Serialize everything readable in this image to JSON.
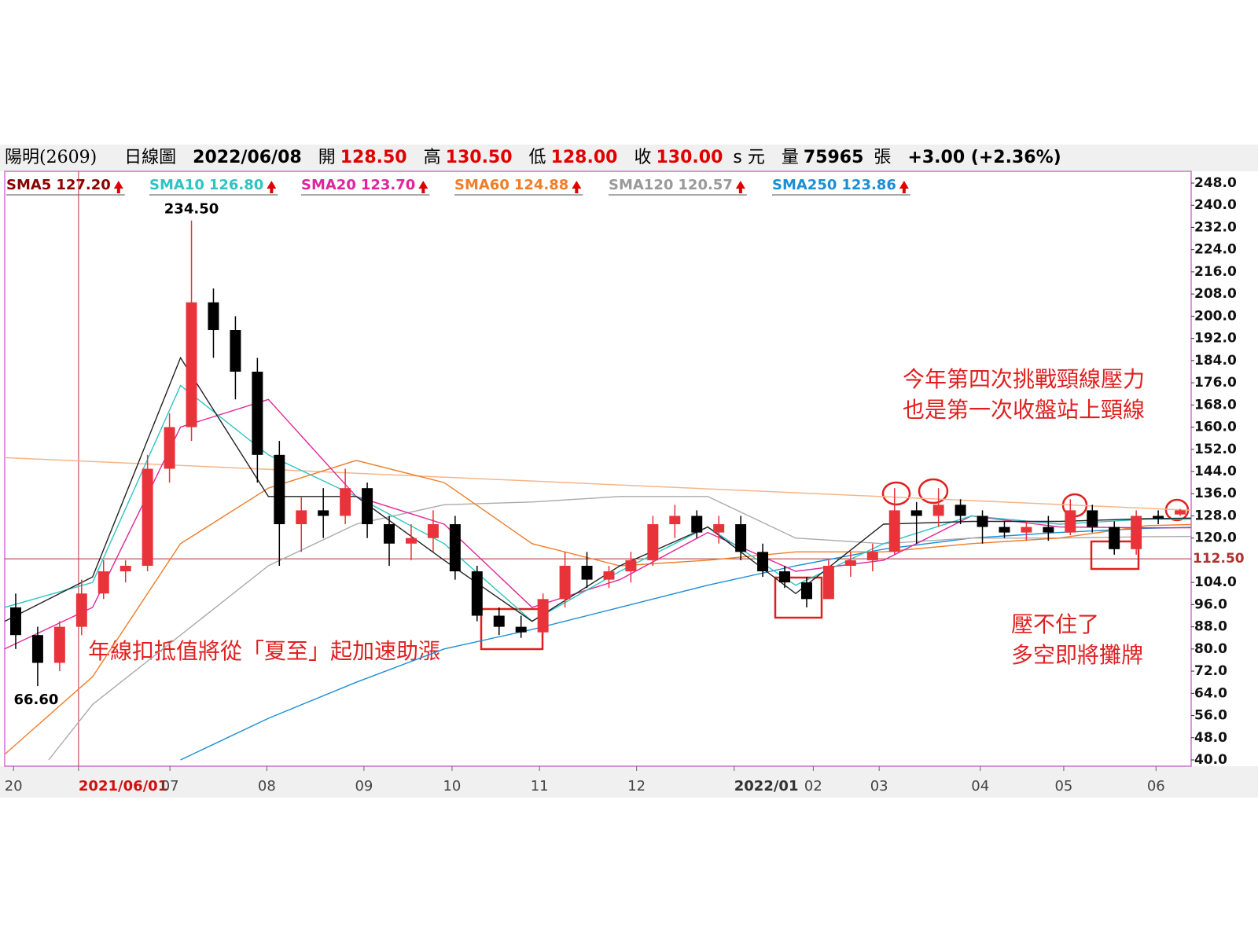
{
  "header": {
    "stock": "陽明(2609)",
    "chart_kind": "日線圖",
    "date": "2022/06/08",
    "open_label": "開",
    "open": "128.50",
    "high_label": "高",
    "high": "130.50",
    "low_label": "低",
    "low": "128.00",
    "close_label": "收",
    "close": "130.00",
    "close_unit": "s 元",
    "volume_label": "量",
    "volume": "75965",
    "volume_unit": "張",
    "change": "+3.00 (+2.36%)"
  },
  "chart_data": {
    "type": "candlestick",
    "up_color": "#e8333a",
    "down_color": "#000000",
    "candles": {
      "open": [
        95,
        85,
        75,
        88,
        100,
        108,
        110,
        145,
        160,
        205,
        195,
        180,
        150,
        125,
        130,
        128,
        138,
        125,
        118,
        120,
        125,
        108,
        92,
        88,
        86,
        98,
        110,
        105,
        108,
        112,
        125,
        128,
        122,
        125,
        115,
        108,
        104,
        98,
        110,
        112,
        115,
        130,
        128,
        132,
        128,
        124,
        122,
        124,
        122,
        130,
        124,
        116,
        128,
        128.5
      ],
      "high": [
        100,
        88,
        90,
        105,
        112,
        112,
        150,
        165,
        234.5,
        210,
        200,
        185,
        155,
        135,
        138,
        145,
        140,
        128,
        125,
        130,
        128,
        110,
        95,
        92,
        100,
        115,
        115,
        110,
        115,
        128,
        132,
        130,
        128,
        128,
        118,
        110,
        106,
        112,
        115,
        118,
        138,
        133,
        138,
        134,
        130,
        126,
        126,
        128,
        134,
        132,
        126,
        130,
        130,
        130.5
      ],
      "low": [
        80,
        66.6,
        72,
        85,
        98,
        104,
        108,
        140,
        155,
        185,
        170,
        140,
        110,
        115,
        120,
        125,
        120,
        110,
        112,
        115,
        105,
        90,
        85,
        84,
        85,
        95,
        102,
        102,
        104,
        110,
        120,
        120,
        118,
        112,
        106,
        102,
        95,
        98,
        106,
        108,
        114,
        118,
        124,
        125,
        118,
        120,
        119,
        119,
        121,
        122,
        114,
        114,
        125,
        128
      ],
      "close": [
        85,
        75,
        88,
        100,
        108,
        110,
        145,
        160,
        205,
        195,
        180,
        150,
        125,
        130,
        128,
        138,
        125,
        118,
        120,
        125,
        108,
        92,
        88,
        86,
        98,
        110,
        105,
        108,
        112,
        125,
        128,
        122,
        125,
        115,
        108,
        104,
        98,
        110,
        112,
        115,
        130,
        128,
        132,
        128,
        124,
        122,
        124,
        122,
        130,
        124,
        116,
        128,
        127,
        130
      ]
    },
    "peak_label": "234.50",
    "trough_label": "66.60",
    "series": [
      {
        "name": "SMA5",
        "current": {
          "value": 127.2,
          "label": "127.20"
        },
        "color": "#8b0000",
        "line_color": "#222222",
        "x": [
          0,
          4,
          8,
          12,
          16,
          20,
          24,
          28,
          32,
          36,
          40,
          44,
          48,
          52,
          54
        ],
        "values": [
          90,
          106,
          185,
          135,
          135,
          112,
          90,
          110,
          124,
          100,
          125,
          126,
          126,
          127,
          127.2
        ]
      },
      {
        "name": "SMA10",
        "current": {
          "value": 126.8,
          "label": "126.80"
        },
        "color": "#2ec4c4",
        "line_color": "#2ec4c4",
        "x": [
          0,
          4,
          8,
          12,
          16,
          20,
          24,
          28,
          32,
          36,
          40,
          44,
          48,
          52,
          54
        ],
        "values": [
          95,
          104,
          175,
          150,
          135,
          118,
          90,
          108,
          124,
          103,
          118,
          128,
          125,
          126.8,
          126.8
        ]
      },
      {
        "name": "SMA20",
        "current": {
          "value": 123.7,
          "label": "123.70"
        },
        "color": "#e0259c",
        "line_color": "#e0259c",
        "x": [
          0,
          4,
          8,
          12,
          16,
          20,
          24,
          28,
          32,
          36,
          40,
          44,
          48,
          52,
          54
        ],
        "values": [
          80,
          95,
          160,
          170,
          135,
          125,
          95,
          105,
          122,
          108,
          112,
          128,
          124,
          123.7,
          123.7
        ]
      },
      {
        "name": "SMA60",
        "current": {
          "value": 124.88,
          "label": "124.88"
        },
        "color": "#f07d28",
        "line_color": "#f07d28",
        "x": [
          0,
          4,
          8,
          12,
          16,
          20,
          24,
          28,
          32,
          36,
          40,
          44,
          48,
          52,
          54
        ],
        "values": [
          42,
          70,
          118,
          138,
          148,
          140,
          118,
          110,
          112,
          115,
          115,
          118,
          120,
          124.5,
          124.88
        ]
      },
      {
        "name": "SMA120",
        "current": {
          "value": 120.57,
          "label": "120.57"
        },
        "color": "#999999",
        "line_color": "#aaaaaa",
        "x": [
          2,
          4,
          8,
          12,
          16,
          20,
          24,
          28,
          32,
          36,
          40,
          44,
          48,
          52,
          54
        ],
        "values": [
          40,
          60,
          85,
          110,
          125,
          132,
          133,
          135,
          135,
          120,
          118,
          120,
          120,
          120.5,
          120.57
        ]
      },
      {
        "name": "SMA250",
        "current": {
          "value": 123.86,
          "label": "123.86"
        },
        "color": "#1a8fd6",
        "line_color": "#1a8fd6",
        "x": [
          8,
          12,
          16,
          20,
          24,
          28,
          32,
          36,
          40,
          44,
          48,
          52,
          54
        ],
        "values": [
          40,
          55,
          68,
          80,
          87,
          95,
          103,
          110,
          116,
          120,
          122,
          123.5,
          123.86
        ]
      }
    ],
    "neckline": {
      "values": [
        149,
        130
      ],
      "color": "#f5b58a"
    },
    "ref_line": {
      "value": 112.5,
      "label": "112.50",
      "color": "#b03030"
    },
    "xlim": [
      0,
      54
    ],
    "xticks": [
      {
        "value": 0.4,
        "label": "20"
      },
      {
        "value": 3.36,
        "label": "2021/06/01",
        "bold": true,
        "color": "#d01010",
        "cursor": true
      },
      {
        "value": 7.52,
        "label": "07"
      },
      {
        "value": 11.93,
        "label": "08"
      },
      {
        "value": 16.35,
        "label": "09"
      },
      {
        "value": 20.36,
        "label": "10"
      },
      {
        "value": 24.34,
        "label": "11"
      },
      {
        "value": 28.76,
        "label": "12"
      },
      {
        "value": 33.2,
        "label": "2022/01",
        "bold": true,
        "color": "#333333"
      },
      {
        "value": 36.8,
        "label": "02"
      },
      {
        "value": 39.8,
        "label": "03"
      },
      {
        "value": 44.4,
        "label": "04"
      },
      {
        "value": 48.2,
        "label": "05"
      },
      {
        "value": 52.4,
        "label": "06"
      }
    ],
    "ylim": [
      40,
      248
    ],
    "yticks": [
      {
        "value": 248,
        "label": "248.0"
      },
      {
        "value": 240,
        "label": "240.0"
      },
      {
        "value": 232,
        "label": "232.0"
      },
      {
        "value": 224,
        "label": "224.0"
      },
      {
        "value": 216,
        "label": "216.0"
      },
      {
        "value": 208,
        "label": "208.0"
      },
      {
        "value": 200,
        "label": "200.0"
      },
      {
        "value": 192,
        "label": "192.0"
      },
      {
        "value": 184,
        "label": "184.0"
      },
      {
        "value": 176,
        "label": "176.0"
      },
      {
        "value": 168,
        "label": "168.0"
      },
      {
        "value": 160,
        "label": "160.0"
      },
      {
        "value": 152,
        "label": "152.0"
      },
      {
        "value": 144,
        "label": "144.0"
      },
      {
        "value": 136,
        "label": "136.0"
      },
      {
        "value": 128,
        "label": "128.0"
      },
      {
        "value": 120,
        "label": "120.0"
      },
      {
        "value": 104,
        "label": "104.0"
      },
      {
        "value": 96,
        "label": "96.0"
      },
      {
        "value": 88,
        "label": "88.0"
      },
      {
        "value": 80,
        "label": "80.0"
      },
      {
        "value": 72,
        "label": "72.0"
      },
      {
        "value": 64,
        "label": "64.0"
      },
      {
        "value": 56,
        "label": "56.0"
      },
      {
        "value": 48,
        "label": "48.0"
      },
      {
        "value": 40,
        "label": "40.0"
      }
    ],
    "annotations": [
      "今年第四次挑戰頸線壓力",
      "也是第一次收盤站上頸線",
      "年線扣抵值將從「夏至」起加速助漲",
      "壓不住了",
      "多空即將攤牌"
    ]
  }
}
